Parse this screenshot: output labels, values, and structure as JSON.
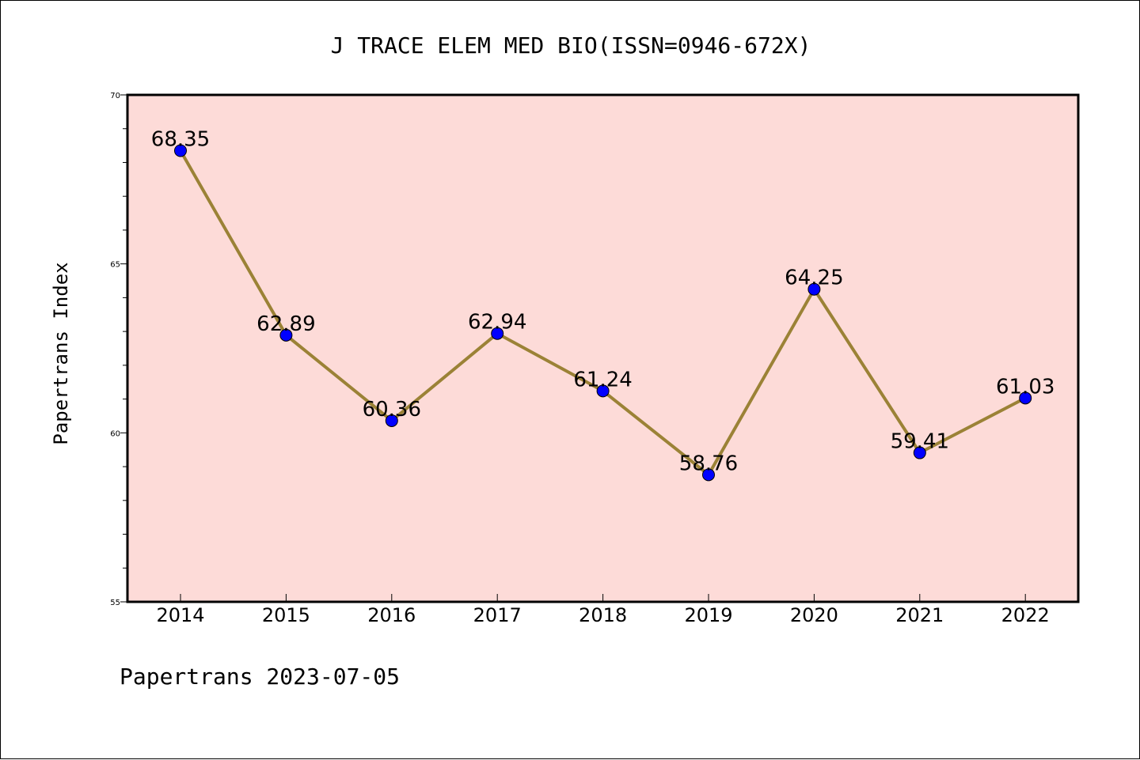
{
  "chart_data": {
    "type": "line",
    "title": "J TRACE ELEM MED BIO(ISSN=0946-672X)",
    "ylabel": "Papertrans Index",
    "xlabel": "",
    "footer": "Papertrans 2023-07-05",
    "categories": [
      "2014",
      "2015",
      "2016",
      "2017",
      "2018",
      "2019",
      "2020",
      "2021",
      "2022"
    ],
    "values": [
      68.35,
      62.89,
      60.36,
      62.94,
      61.24,
      58.76,
      64.25,
      59.41,
      61.03
    ],
    "value_labels": [
      "68.35",
      "62.89",
      "60.36",
      "62.94",
      "61.24",
      "58.76",
      "64.25",
      "59.41",
      "61.03"
    ],
    "ylim": [
      55,
      70
    ],
    "yticks": [
      55,
      60,
      65,
      70
    ],
    "ytick_labels": [
      "55",
      "60",
      "65",
      "70"
    ],
    "grid": false,
    "legend": "none",
    "colors": {
      "plot_background": "#fddbd8",
      "line": "#9b8236",
      "marker": "#0000ff",
      "axis": "#000000"
    }
  }
}
